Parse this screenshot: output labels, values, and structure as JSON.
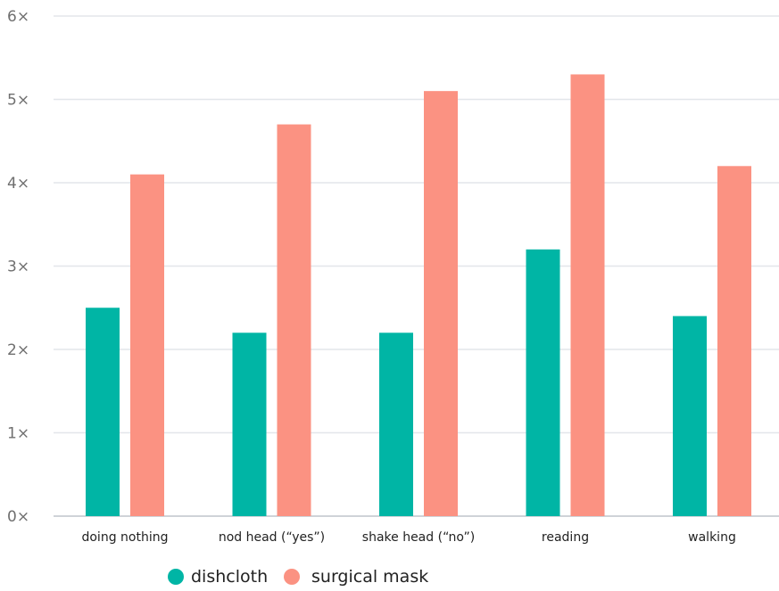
{
  "chart_data": {
    "type": "bar",
    "categories": [
      "doing nothing",
      "nod head (“yes”)",
      "shake head (“no”)",
      "reading",
      "walking"
    ],
    "series": [
      {
        "name": "dishcloth",
        "values": [
          2.5,
          2.2,
          2.2,
          3.2,
          2.4
        ],
        "color": "#00b5a5"
      },
      {
        "name": "surgical mask",
        "values": [
          4.1,
          4.7,
          5.1,
          5.3,
          4.2
        ],
        "color": "#fb9282"
      }
    ],
    "y_ticks": [
      {
        "value": 0,
        "label": "0×"
      },
      {
        "value": 1,
        "label": "1×"
      },
      {
        "value": 2,
        "label": "2×"
      },
      {
        "value": 3,
        "label": "3×"
      },
      {
        "value": 4,
        "label": "4×"
      },
      {
        "value": 5,
        "label": "5×"
      },
      {
        "value": 6,
        "label": "6×"
      }
    ],
    "ylim": [
      0,
      6
    ],
    "grid": true,
    "legend_position": "bottom-center",
    "gridline_color": "#e3e6ea",
    "axis_color": "#cfd3d8"
  }
}
